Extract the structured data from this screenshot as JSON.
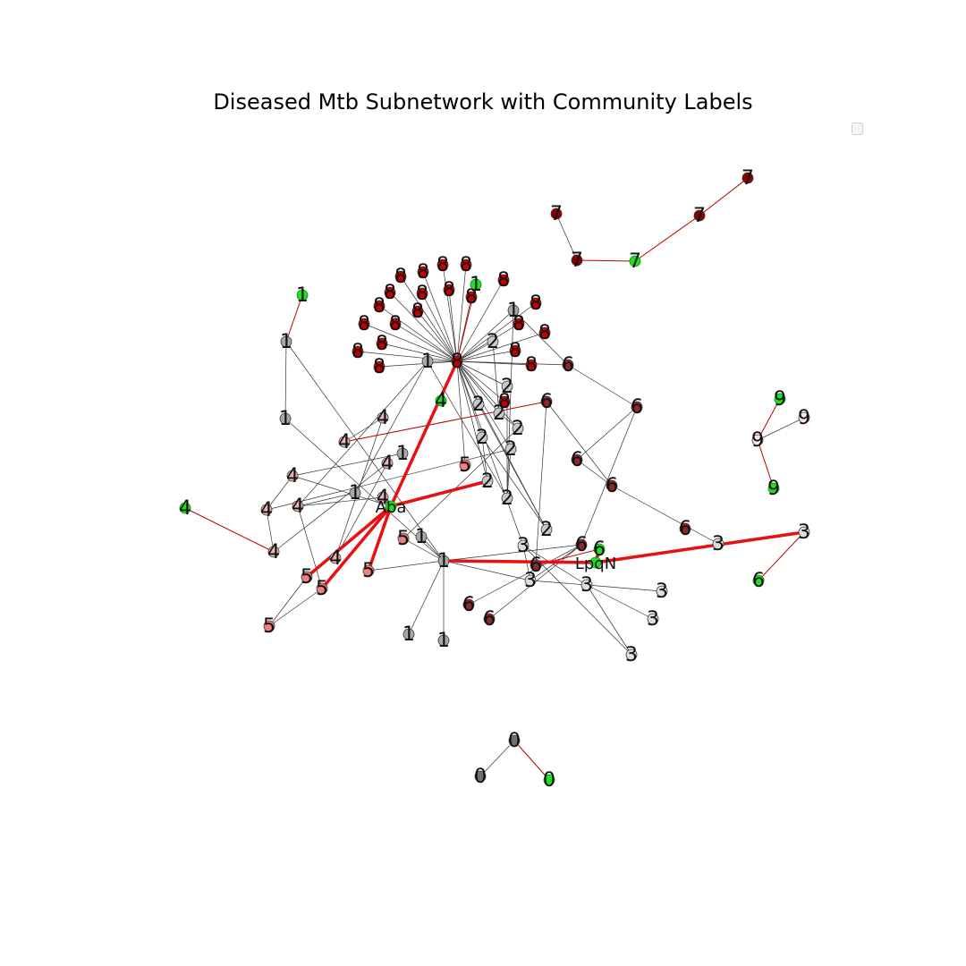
{
  "title": "Diseased Mtb Subnetwork with Community Labels",
  "legend": {
    "entries": []
  },
  "colors": {
    "community_0": "#707070",
    "community_1": "#a8a8a8",
    "community_2": "#c8c8c8",
    "community_3": "#dcdcdc",
    "community_4": "#e8b4b4",
    "community_5": "#f08080",
    "community_6": "#8b2a2a",
    "community_7": "#8b0000",
    "community_8": "#c80000",
    "community_9": "#fae6e6",
    "highlight_node": "#1fe01f",
    "edge_normal": "#333333",
    "edge_red": "#c00000",
    "edge_highlight": "#e81010"
  },
  "diagram": {
    "nodes": [
      {
        "id": "h8",
        "label": "8",
        "community": 8
      },
      {
        "id": "n8a",
        "label": "8",
        "community": 8
      },
      {
        "id": "n8b",
        "label": "8",
        "community": 8
      },
      {
        "id": "n8c",
        "label": "8",
        "community": 8
      },
      {
        "id": "n8d",
        "label": "8",
        "community": 8
      },
      {
        "id": "n8e",
        "label": "8",
        "community": 8
      },
      {
        "id": "n8f",
        "label": "8",
        "community": 8
      },
      {
        "id": "n8g",
        "label": "8",
        "community": 8
      },
      {
        "id": "n8h",
        "label": "8",
        "community": 8
      },
      {
        "id": "n8i",
        "label": "8",
        "community": 8
      },
      {
        "id": "n8j",
        "label": "8",
        "community": 8
      },
      {
        "id": "n8k",
        "label": "8",
        "community": 8
      },
      {
        "id": "n8l",
        "label": "8",
        "community": 8
      },
      {
        "id": "n8m",
        "label": "8",
        "community": 8
      },
      {
        "id": "n8n",
        "label": "8",
        "community": 8
      },
      {
        "id": "n8o",
        "label": "8",
        "community": 8
      },
      {
        "id": "n8p",
        "label": "8",
        "community": 8
      },
      {
        "id": "n8q",
        "label": "8",
        "community": 8
      },
      {
        "id": "n8r",
        "label": "8",
        "community": 8
      },
      {
        "id": "n8s",
        "label": "8",
        "community": 8
      },
      {
        "id": "n8t",
        "label": "8",
        "community": 8
      },
      {
        "id": "n8u",
        "label": "8",
        "community": 8
      },
      {
        "id": "n8v",
        "label": "8",
        "community": 8
      },
      {
        "id": "g1top",
        "label": "1",
        "community": 1,
        "highlight": true
      },
      {
        "id": "g4a",
        "label": "4",
        "community": 4,
        "highlight": true
      },
      {
        "id": "n1a",
        "label": "1",
        "community": 1
      },
      {
        "id": "n1b",
        "label": "1",
        "community": 1
      },
      {
        "id": "n2a",
        "label": "2",
        "community": 2
      },
      {
        "id": "n2b",
        "label": "2",
        "community": 2
      },
      {
        "id": "n2c",
        "label": "2",
        "community": 2
      },
      {
        "id": "n2d",
        "label": "2",
        "community": 2
      },
      {
        "id": "n2e",
        "label": "2",
        "community": 2
      },
      {
        "id": "n2f",
        "label": "2",
        "community": 2
      },
      {
        "id": "n2g",
        "label": "2",
        "community": 2
      },
      {
        "id": "n2h",
        "label": "2",
        "community": 2
      },
      {
        "id": "n2i",
        "label": "2",
        "community": 2
      },
      {
        "id": "n2j",
        "label": "2",
        "community": 2
      },
      {
        "id": "n6a",
        "label": "6",
        "community": 6
      },
      {
        "id": "n6b",
        "label": "6",
        "community": 6
      },
      {
        "id": "n6c",
        "label": "6",
        "community": 6
      },
      {
        "id": "n6d",
        "label": "6",
        "community": 6
      },
      {
        "id": "n6e",
        "label": "6",
        "community": 6
      },
      {
        "id": "n6f",
        "label": "6",
        "community": 6
      },
      {
        "id": "n6g",
        "label": "6",
        "community": 6
      },
      {
        "id": "n6h",
        "label": "6",
        "community": 6
      },
      {
        "id": "n6i",
        "label": "6",
        "community": 6
      },
      {
        "id": "n6j",
        "label": "6",
        "community": 6
      },
      {
        "id": "g6a",
        "label": "6",
        "community": 6,
        "highlight": true
      },
      {
        "id": "g6b",
        "label": "6",
        "community": 6,
        "highlight": true
      },
      {
        "id": "n7a",
        "label": "7",
        "community": 7
      },
      {
        "id": "n7b",
        "label": "7",
        "community": 7
      },
      {
        "id": "n7c",
        "label": "7",
        "community": 7
      },
      {
        "id": "n7d",
        "label": "7",
        "community": 7
      },
      {
        "id": "g7",
        "label": "7",
        "community": 7,
        "highlight": true
      },
      {
        "id": "g1left",
        "label": "1",
        "community": 1,
        "highlight": true
      },
      {
        "id": "n1c",
        "label": "1",
        "community": 1
      },
      {
        "id": "n1d",
        "label": "1",
        "community": 1
      },
      {
        "id": "g9a",
        "label": "9",
        "community": 9,
        "highlight": true
      },
      {
        "id": "n9b",
        "label": "9",
        "community": 9
      },
      {
        "id": "n9c",
        "label": "9",
        "community": 9
      },
      {
        "id": "g9d",
        "label": "9",
        "community": 9,
        "highlight": true
      },
      {
        "id": "n4b",
        "label": "4",
        "community": 4
      },
      {
        "id": "n4c",
        "label": "4",
        "community": 4
      },
      {
        "id": "n4d",
        "label": "4",
        "community": 4
      },
      {
        "id": "n4e",
        "label": "4",
        "community": 4
      },
      {
        "id": "n4f",
        "label": "4",
        "community": 4
      },
      {
        "id": "n4g",
        "label": "4",
        "community": 4
      },
      {
        "id": "n4h",
        "label": "4",
        "community": 4
      },
      {
        "id": "n4i",
        "label": "4",
        "community": 4
      },
      {
        "id": "n4j",
        "label": "4",
        "community": 4
      },
      {
        "id": "g4k",
        "label": "4",
        "community": 4,
        "highlight": true
      },
      {
        "id": "aba",
        "label": "Aba",
        "community": 4,
        "highlight": true
      },
      {
        "id": "n1e",
        "label": "1",
        "community": 1
      },
      {
        "id": "n1f",
        "label": "1",
        "community": 1
      },
      {
        "id": "n1g",
        "label": "1",
        "community": 1
      },
      {
        "id": "n1h",
        "label": "1",
        "community": 1
      },
      {
        "id": "n1i",
        "label": "1",
        "community": 1
      },
      {
        "id": "n1j",
        "label": "1",
        "community": 1
      },
      {
        "id": "n5a",
        "label": "5",
        "community": 5
      },
      {
        "id": "n5b",
        "label": "5",
        "community": 5
      },
      {
        "id": "n5c",
        "label": "5",
        "community": 5
      },
      {
        "id": "n5d",
        "label": "5",
        "community": 5
      },
      {
        "id": "n5e",
        "label": "5",
        "community": 5
      },
      {
        "id": "n5f",
        "label": "5",
        "community": 5
      },
      {
        "id": "n3a",
        "label": "3",
        "community": 3
      },
      {
        "id": "n3b",
        "label": "3",
        "community": 3
      },
      {
        "id": "n3c",
        "label": "3",
        "community": 3
      },
      {
        "id": "n3d",
        "label": "3",
        "community": 3
      },
      {
        "id": "n3e",
        "label": "3",
        "community": 3
      },
      {
        "id": "n3f",
        "label": "3",
        "community": 3
      },
      {
        "id": "n3g",
        "label": "3",
        "community": 3
      },
      {
        "id": "n3h",
        "label": "3",
        "community": 3
      },
      {
        "id": "lpqn",
        "label": "LpqN",
        "community": 6,
        "highlight": true
      },
      {
        "id": "n0a",
        "label": "0",
        "community": 0
      },
      {
        "id": "n0b",
        "label": "0",
        "community": 0
      },
      {
        "id": "g0",
        "label": "0",
        "community": 0,
        "highlight": true
      }
    ],
    "edges": [
      [
        "h8",
        "n8a"
      ],
      [
        "h8",
        "n8b"
      ],
      [
        "h8",
        "n8c"
      ],
      [
        "h8",
        "n8d"
      ],
      [
        "h8",
        "n8e"
      ],
      [
        "h8",
        "n8f"
      ],
      [
        "h8",
        "n8g"
      ],
      [
        "h8",
        "n8h"
      ],
      [
        "h8",
        "n8i"
      ],
      [
        "h8",
        "n8j"
      ],
      [
        "h8",
        "n8k"
      ],
      [
        "h8",
        "n8l"
      ],
      [
        "h8",
        "n8m"
      ],
      [
        "h8",
        "n8n"
      ],
      [
        "h8",
        "n8o"
      ],
      [
        "h8",
        "n8p"
      ],
      [
        "h8",
        "n8q"
      ],
      [
        "h8",
        "n8r"
      ],
      [
        "h8",
        "n8s"
      ],
      [
        "h8",
        "n8t"
      ],
      [
        "h8",
        "n8u"
      ],
      [
        "h8",
        "n8v"
      ],
      [
        "h8",
        "n1a"
      ],
      [
        "h8",
        "n2a"
      ],
      [
        "h8",
        "n2b"
      ],
      [
        "h8",
        "n2c"
      ],
      [
        "h8",
        "n2d"
      ],
      [
        "h8",
        "n2e"
      ],
      [
        "h8",
        "n2f"
      ],
      [
        "h8",
        "n2g"
      ],
      [
        "h8",
        "n2h"
      ],
      [
        "h8",
        "n6a"
      ],
      [
        "h8",
        "n5a"
      ],
      [
        "h8",
        "n1b"
      ],
      [
        "h8",
        "n3a"
      ],
      [
        "h8",
        "n2j"
      ],
      [
        "n1b",
        "n6a"
      ],
      [
        "n1b",
        "n2i"
      ],
      [
        "n6a",
        "n6c"
      ],
      [
        "n6c",
        "n6d"
      ],
      [
        "n6d",
        "n6e"
      ],
      [
        "n6e",
        "n3f"
      ],
      [
        "n6b",
        "n6e"
      ],
      [
        "n3f",
        "n3h"
      ],
      [
        "n6b",
        "n6g"
      ],
      [
        "n6c",
        "n6f"
      ],
      [
        "n6f",
        "n6i"
      ],
      [
        "n6f",
        "n6h"
      ],
      [
        "n6f",
        "n3b"
      ],
      [
        "n1e",
        "n3b"
      ],
      [
        "n1e",
        "n1c"
      ],
      [
        "n1e",
        "n1i"
      ],
      [
        "n1e",
        "n1j"
      ],
      [
        "n1e",
        "n5b"
      ],
      [
        "n1e",
        "n1h"
      ],
      [
        "n1e",
        "n5d"
      ],
      [
        "n1e",
        "n6f"
      ],
      [
        "n3b",
        "n3c"
      ],
      [
        "n3c",
        "n3d"
      ],
      [
        "n3c",
        "n3e"
      ],
      [
        "n3c",
        "n3g"
      ],
      [
        "n3a",
        "n3g"
      ],
      [
        "n3a",
        "n3c"
      ],
      [
        "n3b",
        "n3a"
      ],
      [
        "n2c",
        "n2g"
      ],
      [
        "n2g",
        "n2j"
      ],
      [
        "n2d",
        "n2j"
      ],
      [
        "n2e",
        "n2f"
      ],
      [
        "n2i",
        "n2h"
      ],
      [
        "n2b",
        "n2i"
      ],
      [
        "n2a",
        "n2e"
      ],
      [
        "n1f",
        "n4e"
      ],
      [
        "n4e",
        "n4h"
      ],
      [
        "n4h",
        "n4i"
      ],
      [
        "n4i",
        "n4d"
      ],
      [
        "n4d",
        "n4j"
      ],
      [
        "n4j",
        "n4b"
      ],
      [
        "n4b",
        "n4c"
      ],
      [
        "n4f",
        "n4g"
      ],
      [
        "n4g",
        "n5e"
      ],
      [
        "n1a",
        "n4g"
      ],
      [
        "n1a",
        "n1g"
      ],
      [
        "n1g",
        "n4g"
      ],
      [
        "n5c",
        "n5f"
      ],
      [
        "n5e",
        "n5f"
      ],
      [
        "n1c",
        "n1d"
      ],
      [
        "n1d",
        "n1e"
      ],
      [
        "n1a",
        "n2i"
      ],
      [
        "n5b",
        "n2f"
      ],
      [
        "n4h",
        "n2h"
      ],
      [
        "n7a",
        "n7b"
      ],
      [
        "n7c",
        "n7d"
      ],
      [
        "n9c",
        "n9b"
      ],
      [
        "n0b",
        "n0a"
      ],
      [
        "aba",
        "n4f"
      ],
      [
        "aba",
        "n4e"
      ]
    ],
    "red_edges": [
      [
        "h8",
        "g1top"
      ],
      [
        "g1top",
        "n8l"
      ],
      [
        "n4c",
        "n6b"
      ],
      [
        "g4k",
        "n4i"
      ],
      [
        "n7b",
        "g7"
      ],
      [
        "g7",
        "n7c"
      ],
      [
        "n7c",
        "n7d"
      ],
      [
        "g1left",
        "n1c"
      ],
      [
        "g9a",
        "n9c"
      ],
      [
        "n9c",
        "g9d"
      ],
      [
        "n3h",
        "g6b"
      ],
      [
        "n0a",
        "g0"
      ],
      [
        "n6g",
        "g6a"
      ]
    ],
    "highlight_edges": [
      [
        "aba",
        "h8"
      ],
      [
        "aba",
        "n2c"
      ],
      [
        "aba",
        "n5c"
      ],
      [
        "aba",
        "n5e"
      ],
      [
        "aba",
        "n5d"
      ],
      [
        "n1e",
        "lpqn"
      ],
      [
        "lpqn",
        "n3h"
      ],
      [
        "lpqn",
        "g6a"
      ]
    ]
  }
}
